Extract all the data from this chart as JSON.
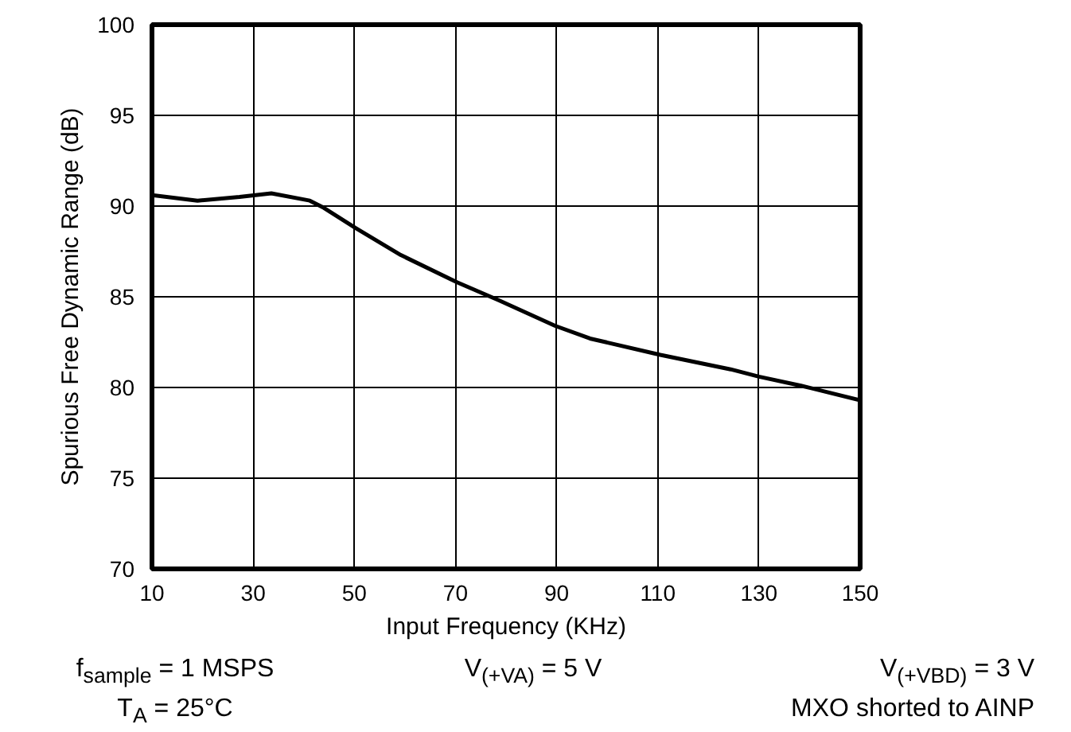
{
  "chart_data": {
    "type": "line",
    "xlabel": "Input Frequency (KHz)",
    "ylabel": "Spurious Free Dynamic Range (dB)",
    "x": [
      10,
      19,
      27.3,
      33.6,
      41.2,
      44,
      50.2,
      59.2,
      70.3,
      78.6,
      89.7,
      96.6,
      110.5,
      124.4,
      130,
      138.3,
      150
    ],
    "series": [
      {
        "color": "#000000",
        "values": [
          90.6,
          90.3,
          90.5,
          90.7,
          90.3,
          89.9,
          88.8,
          87.3,
          85.8,
          84.8,
          83.4,
          82.7,
          81.8,
          81.0,
          80.6,
          80.1,
          79.3
        ]
      }
    ],
    "xlim": [
      10,
      150
    ],
    "xticks": [
      10,
      30,
      50,
      70,
      90,
      110,
      130,
      150
    ],
    "ylim": [
      70,
      100
    ],
    "yticks": [
      70,
      75,
      80,
      85,
      90,
      95,
      100
    ],
    "grid": true,
    "marker": "none",
    "line_style": "solid",
    "annotations": [
      "f$_{sample}$ = 1 MSPS",
      "V$_{(+VA)}$ = 5 V",
      "V$_{(+VBD)}$ = 3 V",
      "T$_{A}$ = 25°C",
      "MXO shorted to AINP"
    ]
  }
}
